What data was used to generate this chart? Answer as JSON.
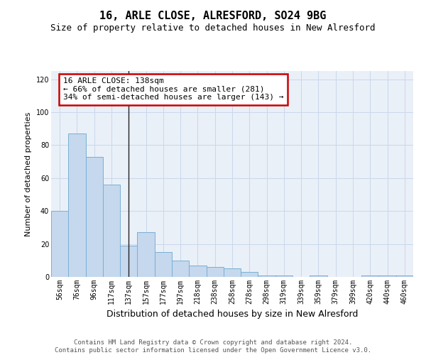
{
  "title": "16, ARLE CLOSE, ALRESFORD, SO24 9BG",
  "subtitle": "Size of property relative to detached houses in New Alresford",
  "xlabel": "Distribution of detached houses by size in New Alresford",
  "ylabel": "Number of detached properties",
  "categories": [
    "56sqm",
    "76sqm",
    "96sqm",
    "117sqm",
    "137sqm",
    "157sqm",
    "177sqm",
    "197sqm",
    "218sqm",
    "238sqm",
    "258sqm",
    "278sqm",
    "298sqm",
    "319sqm",
    "339sqm",
    "359sqm",
    "379sqm",
    "399sqm",
    "420sqm",
    "440sqm",
    "460sqm"
  ],
  "values": [
    40,
    87,
    73,
    56,
    19,
    27,
    15,
    10,
    7,
    6,
    5,
    3,
    1,
    1,
    0,
    1,
    0,
    0,
    1,
    1,
    1
  ],
  "bar_color": "#c5d8ed",
  "bar_edge_color": "#7aafd4",
  "highlight_index": 4,
  "highlight_line_color": "#222222",
  "annotation_text": "16 ARLE CLOSE: 138sqm\n← 66% of detached houses are smaller (281)\n34% of semi-detached houses are larger (143) →",
  "annotation_box_color": "#ffffff",
  "annotation_box_edge_color": "#cc0000",
  "ylim": [
    0,
    125
  ],
  "yticks": [
    0,
    20,
    40,
    60,
    80,
    100,
    120
  ],
  "grid_color": "#c8d8ea",
  "background_color": "#eaf0f8",
  "footer_text": "Contains HM Land Registry data © Crown copyright and database right 2024.\nContains public sector information licensed under the Open Government Licence v3.0.",
  "title_fontsize": 11,
  "subtitle_fontsize": 9,
  "xlabel_fontsize": 9,
  "ylabel_fontsize": 8,
  "tick_fontsize": 7,
  "annotation_fontsize": 8,
  "footer_fontsize": 6.5
}
